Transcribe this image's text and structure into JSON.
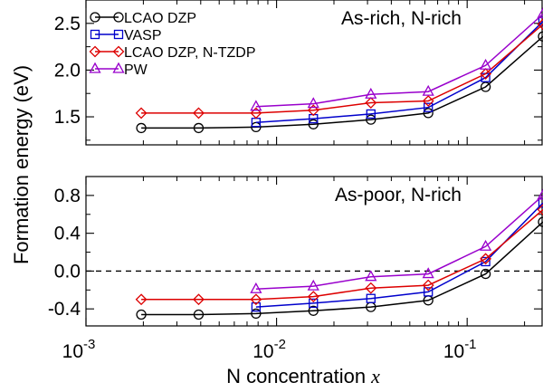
{
  "chart_data": {
    "type": "line",
    "xlabel": "N concentration",
    "xlabel_var": "x",
    "ylabel": "Formation energy (eV)",
    "xscale": "log",
    "xlim": [
      0.001,
      0.25
    ],
    "x_ticks": [
      {
        "value": 0.001,
        "base": "10",
        "exp": "-3"
      },
      {
        "value": 0.01,
        "base": "10",
        "exp": "-2"
      },
      {
        "value": 0.1,
        "base": "10",
        "exp": "-1"
      }
    ],
    "legend_position": "top-left",
    "panels": [
      {
        "label": "As-rich, N-rich",
        "ylim": [
          1.2,
          2.75
        ],
        "y_ticks": [
          {
            "value": 1.5,
            "label": "1.5"
          },
          {
            "value": 2.0,
            "label": "2.0"
          },
          {
            "value": 2.5,
            "label": "2.5"
          }
        ],
        "zero_line": false,
        "series": [
          {
            "name": "LCAO DZP",
            "color": "#000000",
            "marker": "circle",
            "x": [
              0.00195,
              0.0039,
              0.0078,
              0.0156,
              0.03125,
              0.0625,
              0.125,
              0.25
            ],
            "y": [
              1.38,
              1.38,
              1.39,
              1.42,
              1.47,
              1.54,
              1.82,
              2.36
            ]
          },
          {
            "name": "VASP",
            "color": "#0000cc",
            "marker": "square",
            "x": [
              0.0078,
              0.0156,
              0.03125,
              0.0625,
              0.125,
              0.25
            ],
            "y": [
              1.44,
              1.48,
              1.53,
              1.6,
              1.92,
              2.52
            ]
          },
          {
            "name": "LCAO DZP, N-TZDP",
            "color": "#dd0000",
            "marker": "diamond",
            "x": [
              0.00195,
              0.0039,
              0.0078,
              0.0156,
              0.03125,
              0.0625,
              0.125,
              0.25
            ],
            "y": [
              1.54,
              1.54,
              1.54,
              1.57,
              1.65,
              1.67,
              1.96,
              2.49
            ]
          },
          {
            "name": "PW",
            "color": "#9900cc",
            "marker": "triangle",
            "x": [
              0.0078,
              0.0156,
              0.03125,
              0.0625,
              0.125,
              0.25
            ],
            "y": [
              1.61,
              1.64,
              1.74,
              1.77,
              2.05,
              2.6
            ]
          }
        ]
      },
      {
        "label": "As-poor, N-rich",
        "ylim": [
          -0.58,
          1.0
        ],
        "y_ticks": [
          {
            "value": -0.4,
            "label": "-0.4"
          },
          {
            "value": 0.0,
            "label": "0.0"
          },
          {
            "value": 0.4,
            "label": "0.4"
          },
          {
            "value": 0.8,
            "label": "0.8"
          }
        ],
        "zero_line": true,
        "series": [
          {
            "name": "LCAO DZP",
            "color": "#000000",
            "marker": "circle",
            "x": [
              0.00195,
              0.0039,
              0.0078,
              0.0156,
              0.03125,
              0.0625,
              0.125,
              0.25
            ],
            "y": [
              -0.46,
              -0.46,
              -0.45,
              -0.42,
              -0.38,
              -0.31,
              -0.03,
              0.52
            ]
          },
          {
            "name": "VASP",
            "color": "#0000cc",
            "marker": "square",
            "x": [
              0.0078,
              0.0156,
              0.03125,
              0.0625,
              0.125,
              0.25
            ],
            "y": [
              -0.38,
              -0.34,
              -0.29,
              -0.22,
              0.1,
              0.72
            ]
          },
          {
            "name": "LCAO DZP, N-TZDP",
            "color": "#dd0000",
            "marker": "diamond",
            "x": [
              0.00195,
              0.0039,
              0.0078,
              0.0156,
              0.03125,
              0.0625,
              0.125,
              0.25
            ],
            "y": [
              -0.3,
              -0.3,
              -0.3,
              -0.27,
              -0.18,
              -0.15,
              0.13,
              0.65
            ]
          },
          {
            "name": "PW",
            "color": "#9900cc",
            "marker": "triangle",
            "x": [
              0.0078,
              0.0156,
              0.03125,
              0.0625,
              0.125,
              0.25
            ],
            "y": [
              -0.19,
              -0.16,
              -0.06,
              -0.03,
              0.26,
              0.8
            ]
          }
        ]
      }
    ]
  }
}
